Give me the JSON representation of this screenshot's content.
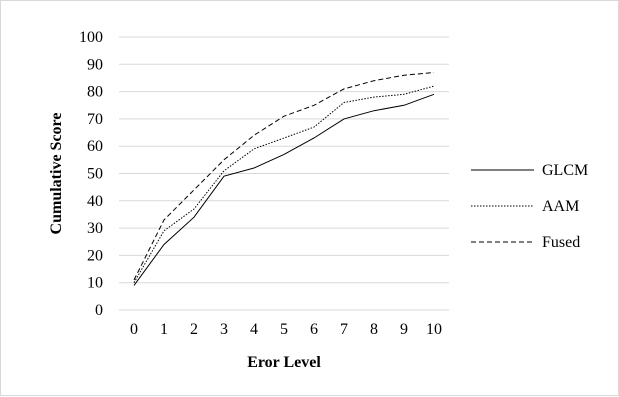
{
  "chart_data": {
    "type": "line",
    "title": "",
    "xlabel": "Eror Level",
    "ylabel": "Cumulative Score",
    "x": [
      0,
      1,
      2,
      3,
      4,
      5,
      6,
      7,
      8,
      9,
      10
    ],
    "ylim": [
      0,
      100
    ],
    "yticks": [
      0,
      10,
      20,
      30,
      40,
      50,
      60,
      70,
      80,
      90,
      100
    ],
    "grid": "horizontal",
    "legend_position": "right",
    "series": [
      {
        "name": "GLCM",
        "style": "solid",
        "color": "#000000",
        "values": [
          9,
          24,
          34,
          49,
          52,
          57,
          63,
          70,
          73,
          75,
          79
        ]
      },
      {
        "name": "AAM",
        "style": "dotted",
        "color": "#000000",
        "values": [
          10,
          29,
          37,
          51,
          59,
          63,
          67,
          76,
          78,
          79,
          82
        ]
      },
      {
        "name": "Fused",
        "style": "dashed",
        "color": "#000000",
        "values": [
          11,
          33,
          44,
          55,
          64,
          71,
          75,
          81,
          84,
          86,
          87
        ]
      }
    ]
  }
}
